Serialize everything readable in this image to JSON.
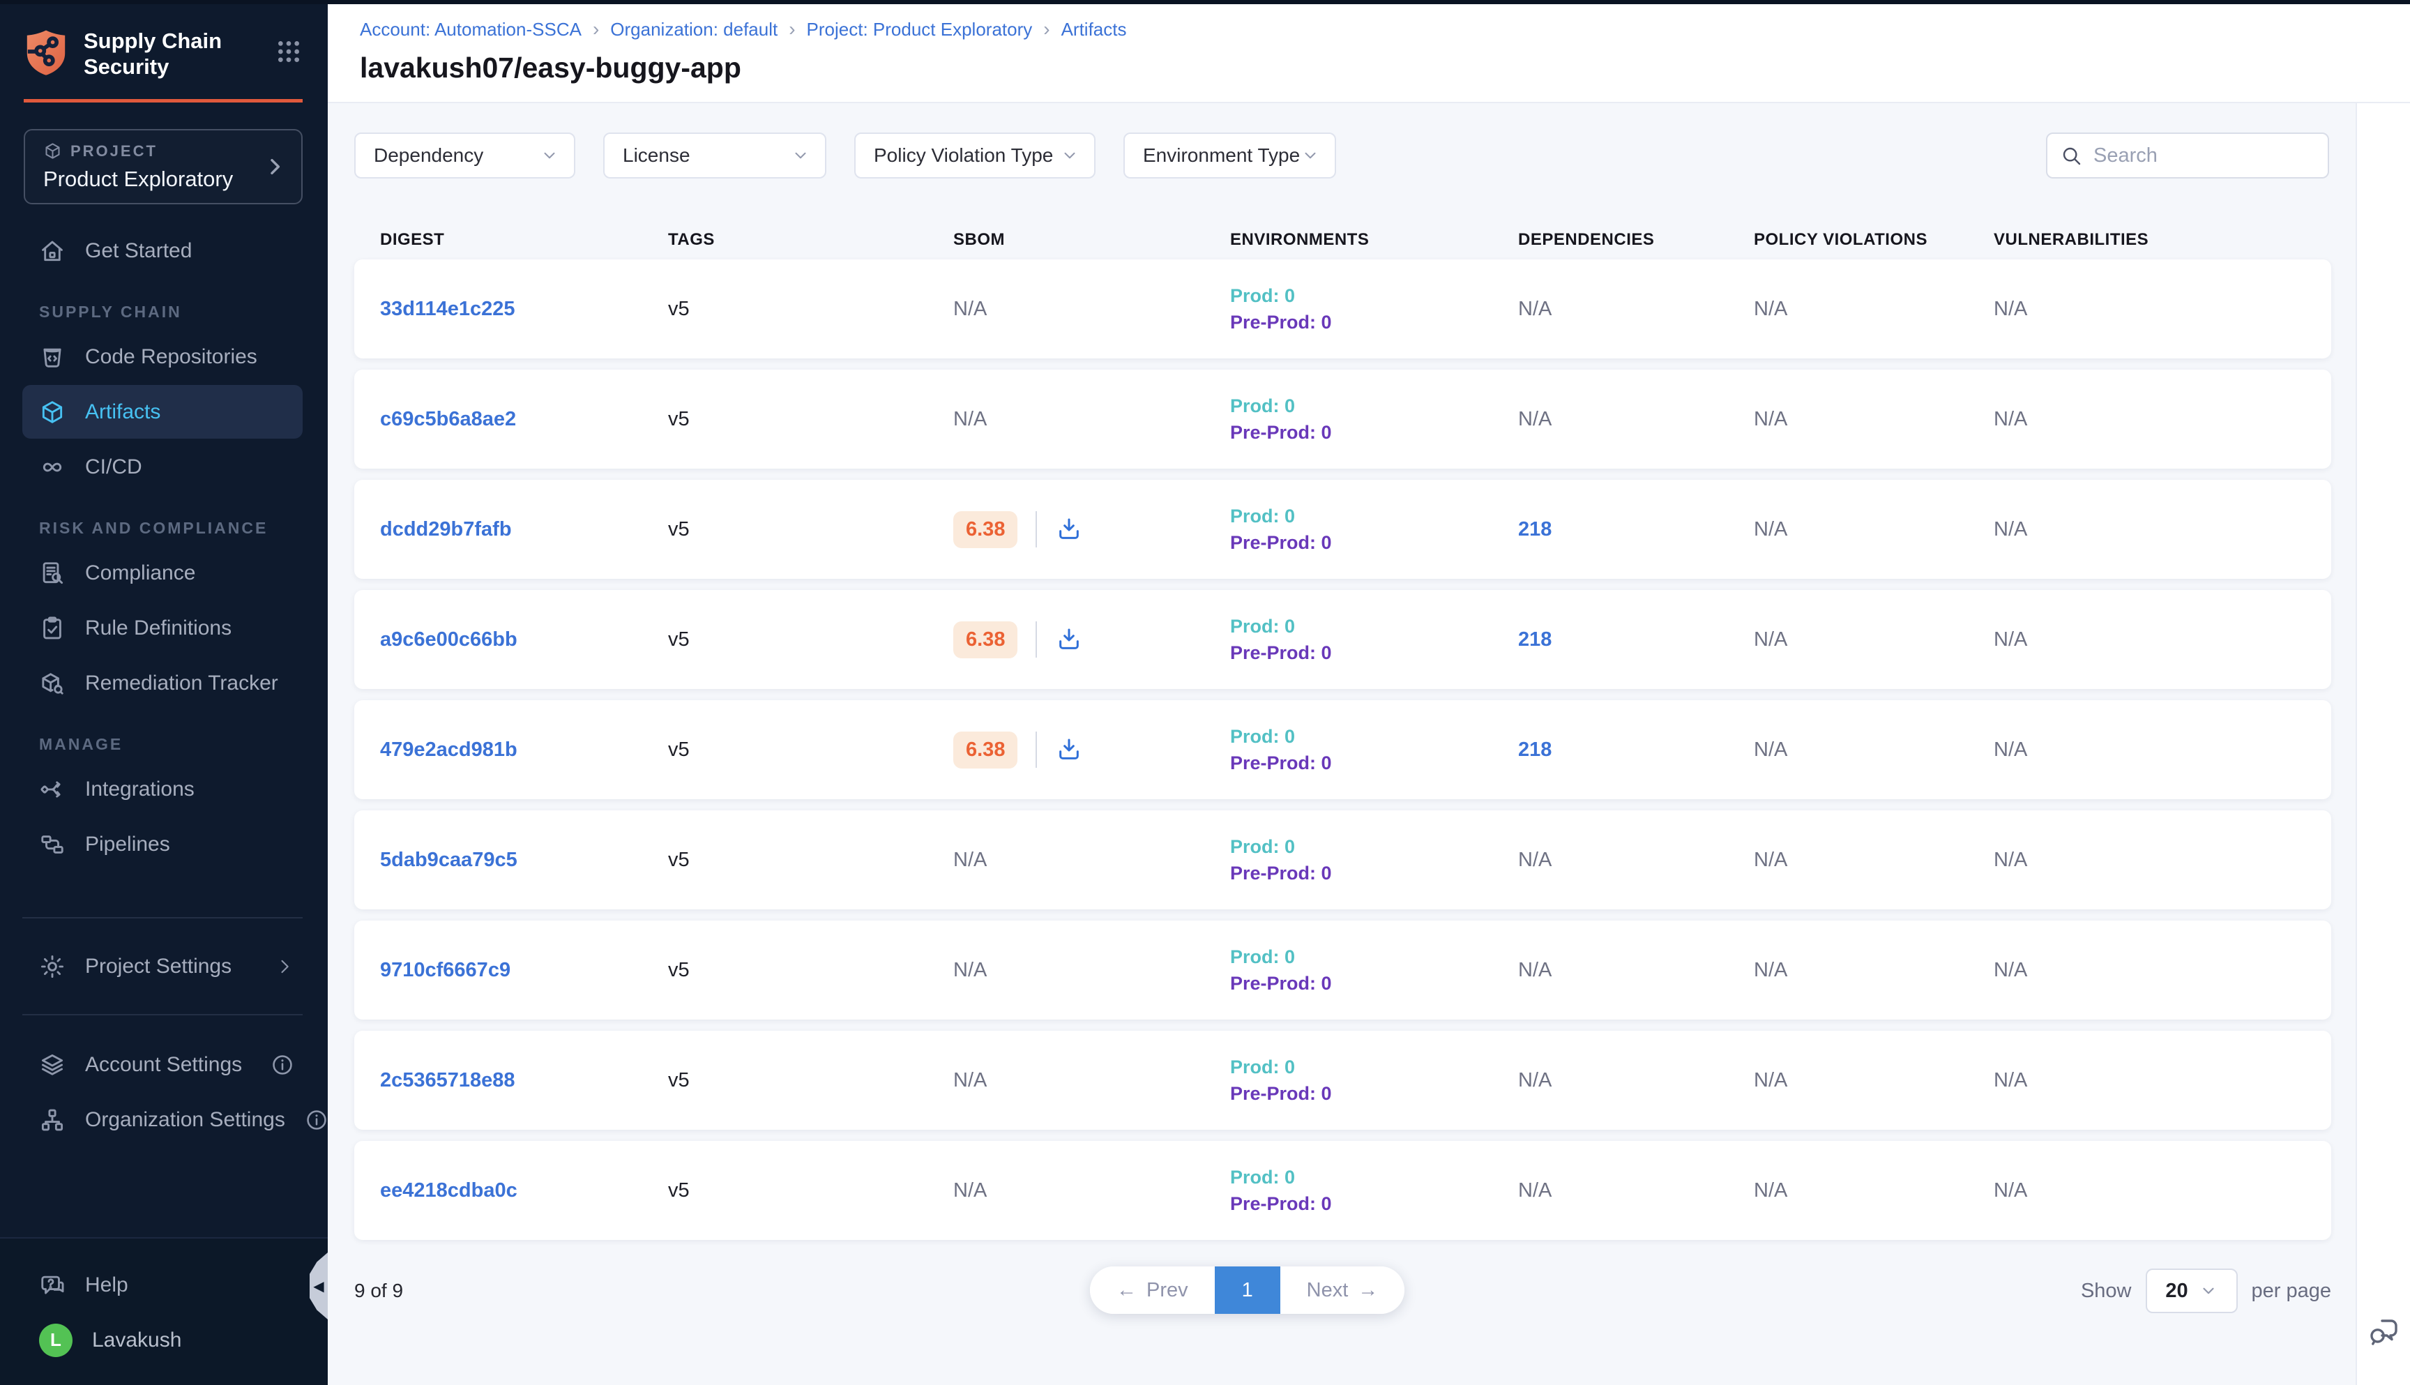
{
  "colors": {
    "sidebar_bg": "#0e1a2d",
    "accent_orange": "#e0593c",
    "link_blue": "#3b72d6",
    "prod_teal": "#52c0c4",
    "preprod_purple": "#6938b9",
    "sbom_orange": "#eb6234",
    "sbom_bg": "#fbeadb",
    "page_blue": "#3f87d9",
    "avatar_green": "#53c254",
    "active_blue": "#47c1f2"
  },
  "sidebar": {
    "app_title": "Supply Chain Security",
    "project_label": "PROJECT",
    "project_name": "Product Exploratory",
    "nav_sections": [
      {
        "header": "",
        "items": [
          {
            "icon": "home",
            "label": "Get Started",
            "active": false
          }
        ]
      },
      {
        "header": "SUPPLY CHAIN",
        "items": [
          {
            "icon": "code-repo",
            "label": "Code Repositories",
            "active": false
          },
          {
            "icon": "cube",
            "label": "Artifacts",
            "active": true
          },
          {
            "icon": "infinity",
            "label": "CI/CD",
            "active": false
          }
        ]
      },
      {
        "header": "RISK AND COMPLIANCE",
        "items": [
          {
            "icon": "doc-search",
            "label": "Compliance",
            "active": false
          },
          {
            "icon": "clipboard-check",
            "label": "Rule Definitions",
            "active": false
          },
          {
            "icon": "box-tool",
            "label": "Remediation Tracker",
            "active": false
          }
        ]
      },
      {
        "header": "MANAGE",
        "items": [
          {
            "icon": "integrations",
            "label": "Integrations",
            "active": false
          },
          {
            "icon": "pipelines",
            "label": "Pipelines",
            "active": false
          }
        ]
      }
    ],
    "settings_items": [
      {
        "icon": "gear",
        "label": "Project Settings",
        "trailing": "chevron"
      },
      {
        "icon": "layers",
        "label": "Account Settings",
        "trailing": "info"
      },
      {
        "icon": "org",
        "label": "Organization Settings",
        "trailing": "info"
      }
    ],
    "help_label": "Help",
    "user": {
      "name": "Lavakush",
      "initial": "L"
    }
  },
  "header": {
    "breadcrumb": [
      "Account: Automation-SSCA",
      "Organization: default",
      "Project: Product Exploratory",
      "Artifacts"
    ],
    "title": "lavakush07/easy-buggy-app"
  },
  "filters": {
    "dropdowns": [
      "Dependency",
      "License",
      "Policy Violation Type",
      "Environment Type"
    ],
    "search_placeholder": "Search"
  },
  "table": {
    "columns": [
      "DIGEST",
      "TAGS",
      "SBOM",
      "ENVIRONMENTS",
      "DEPENDENCIES",
      "POLICY VIOLATIONS",
      "VULNERABILITIES"
    ],
    "na_text": "N/A",
    "rows": [
      {
        "digest": "33d114e1c225",
        "tags": "v5",
        "sbom_score": null,
        "environments": {
          "prod": "Prod: 0",
          "preprod": "Pre-Prod: 0"
        },
        "dependencies": "N/A",
        "policy_violations": "N/A",
        "vulnerabilities": "N/A"
      },
      {
        "digest": "c69c5b6a8ae2",
        "tags": "v5",
        "sbom_score": null,
        "environments": {
          "prod": "Prod: 0",
          "preprod": "Pre-Prod: 0"
        },
        "dependencies": "N/A",
        "policy_violations": "N/A",
        "vulnerabilities": "N/A"
      },
      {
        "digest": "dcdd29b7fafb",
        "tags": "v5",
        "sbom_score": "6.38",
        "environments": {
          "prod": "Prod: 0",
          "preprod": "Pre-Prod: 0"
        },
        "dependencies": "218",
        "policy_violations": "N/A",
        "vulnerabilities": "N/A"
      },
      {
        "digest": "a9c6e00c66bb",
        "tags": "v5",
        "sbom_score": "6.38",
        "environments": {
          "prod": "Prod: 0",
          "preprod": "Pre-Prod: 0"
        },
        "dependencies": "218",
        "policy_violations": "N/A",
        "vulnerabilities": "N/A"
      },
      {
        "digest": "479e2acd981b",
        "tags": "v5",
        "sbom_score": "6.38",
        "environments": {
          "prod": "Prod: 0",
          "preprod": "Pre-Prod: 0"
        },
        "dependencies": "218",
        "policy_violations": "N/A",
        "vulnerabilities": "N/A"
      },
      {
        "digest": "5dab9caa79c5",
        "tags": "v5",
        "sbom_score": null,
        "environments": {
          "prod": "Prod: 0",
          "preprod": "Pre-Prod: 0"
        },
        "dependencies": "N/A",
        "policy_violations": "N/A",
        "vulnerabilities": "N/A"
      },
      {
        "digest": "9710cf6667c9",
        "tags": "v5",
        "sbom_score": null,
        "environments": {
          "prod": "Prod: 0",
          "preprod": "Pre-Prod: 0"
        },
        "dependencies": "N/A",
        "policy_violations": "N/A",
        "vulnerabilities": "N/A"
      },
      {
        "digest": "2c5365718e88",
        "tags": "v5",
        "sbom_score": null,
        "environments": {
          "prod": "Prod: 0",
          "preprod": "Pre-Prod: 0"
        },
        "dependencies": "N/A",
        "policy_violations": "N/A",
        "vulnerabilities": "N/A"
      },
      {
        "digest": "ee4218cdba0c",
        "tags": "v5",
        "sbom_score": null,
        "environments": {
          "prod": "Prod: 0",
          "preprod": "Pre-Prod: 0"
        },
        "dependencies": "N/A",
        "policy_violations": "N/A",
        "vulnerabilities": "N/A"
      }
    ]
  },
  "pagination": {
    "summary": "9 of 9",
    "prev_label": "Prev",
    "current_page": "1",
    "next_label": "Next",
    "show_label": "Show",
    "page_size": "20",
    "per_page_label": "per page"
  }
}
